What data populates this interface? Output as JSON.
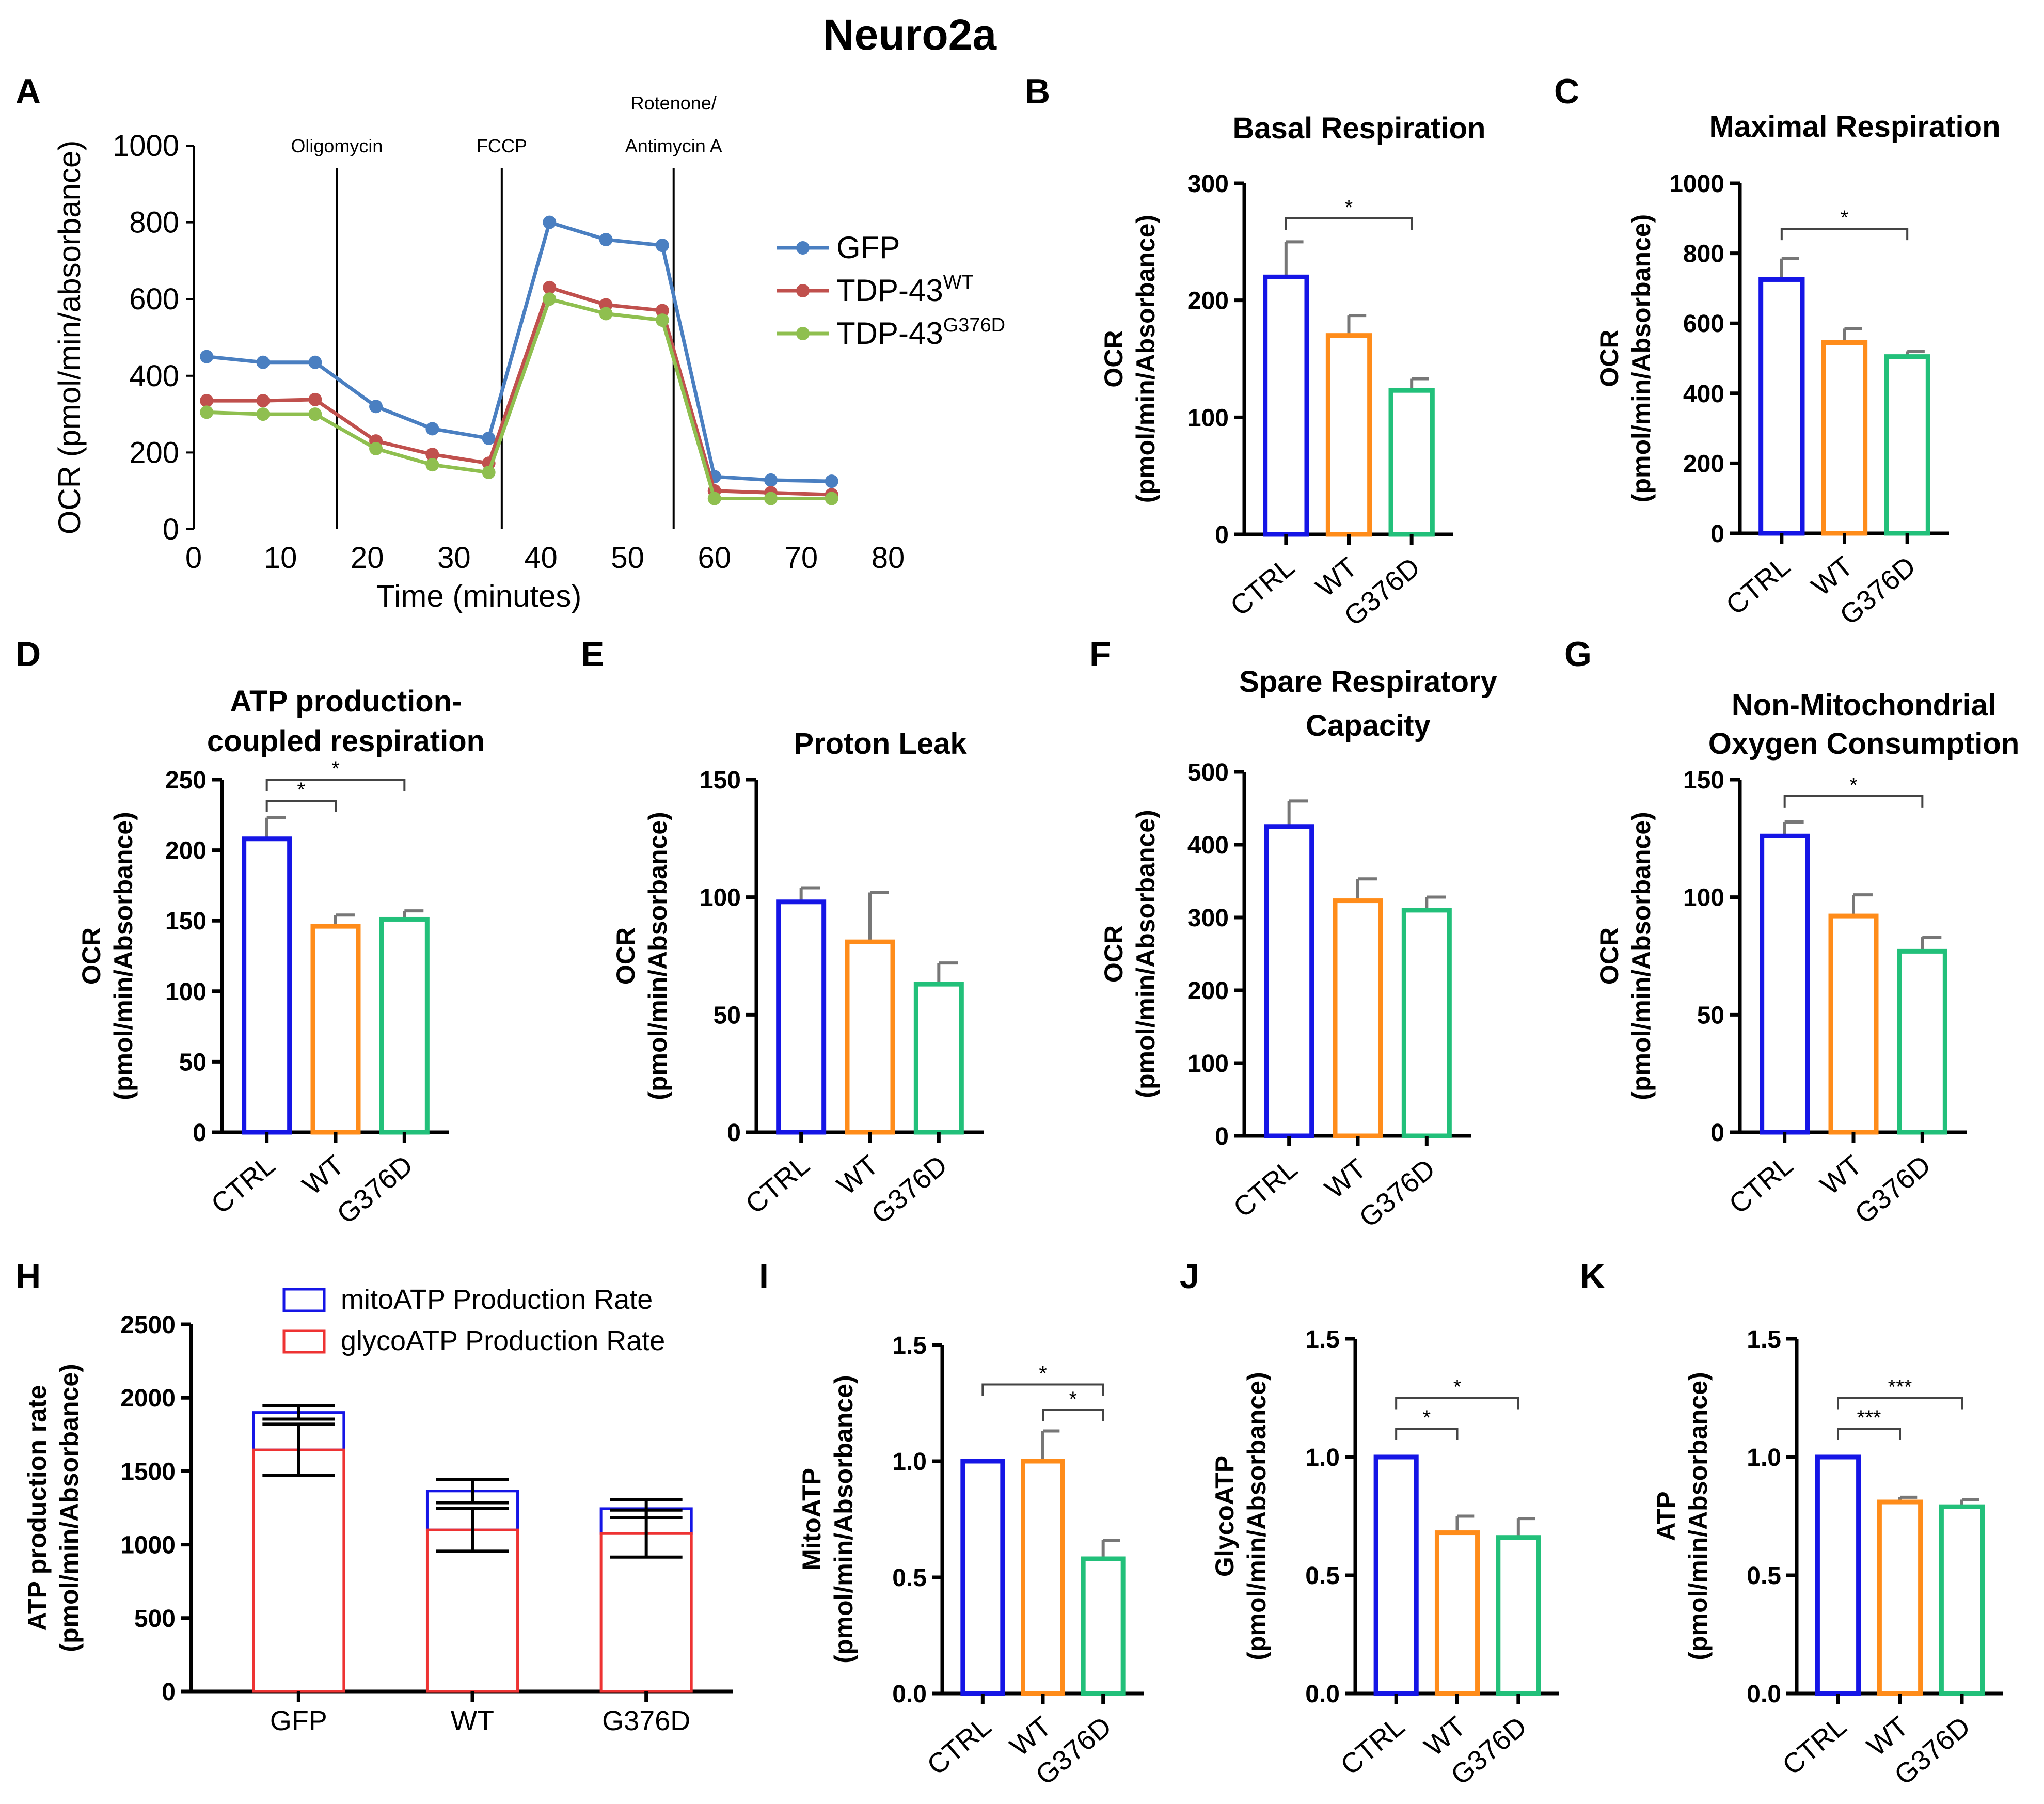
{
  "figure_title": "Neuro2a",
  "colors": {
    "ctrl": "#1515e6",
    "wt": "#ff8c1a",
    "g376d": "#22c07a",
    "gfp_line": "#4a7fc1",
    "wt_line": "#c0504d",
    "g376d_line": "#8fbf4f",
    "mito": "#1515e6",
    "glyco": "#ee3333"
  },
  "chart_data": [
    {
      "id": "A",
      "letter": "A",
      "type": "line",
      "title": "",
      "xlabel": "Time (minutes)",
      "ylabel": "OCR (pmol/min/absorbance)",
      "xlim": [
        0,
        80
      ],
      "ylim": [
        0,
        1000
      ],
      "xticks": [
        0,
        10,
        20,
        30,
        40,
        50,
        60,
        70,
        80
      ],
      "yticks": [
        0,
        200,
        400,
        600,
        800,
        1000
      ],
      "injections": [
        {
          "x": 16.5,
          "label": "Oligomycin"
        },
        {
          "x": 35.5,
          "label": "FCCP"
        },
        {
          "x": 55.3,
          "label": "Antimycin A",
          "label_top": "Rotenone/"
        }
      ],
      "x": [
        1.5,
        8,
        14,
        21,
        27.5,
        34,
        41,
        47.5,
        54,
        60,
        66.5,
        73.5
      ],
      "series": [
        {
          "name": "GFP",
          "sup": "",
          "color_key": "gfp_line",
          "values": [
            450,
            435,
            435,
            320,
            262,
            237,
            800,
            755,
            740,
            137,
            128,
            125
          ]
        },
        {
          "name": "TDP-43",
          "sup": "WT",
          "color_key": "wt_line",
          "values": [
            335,
            335,
            338,
            230,
            195,
            172,
            630,
            585,
            570,
            100,
            95,
            90
          ]
        },
        {
          "name": "TDP-43",
          "sup": "G376D",
          "color_key": "g376d_line",
          "values": [
            305,
            300,
            300,
            210,
            168,
            148,
            600,
            562,
            545,
            80,
            80,
            80
          ]
        }
      ]
    },
    {
      "id": "B",
      "letter": "B",
      "type": "bar",
      "title": [
        "Basal Respiration"
      ],
      "ylabel": [
        "OCR",
        "(pmol/min/Absorbance)"
      ],
      "categories": [
        "CTRL",
        "WT",
        "G376D"
      ],
      "values": [
        220,
        170,
        123
      ],
      "errors": [
        30,
        17,
        10
      ],
      "ylim": [
        0,
        300
      ],
      "yticks": [
        0,
        100,
        200,
        300
      ],
      "decimals": 0,
      "sig": [
        {
          "from": 0,
          "to": 2,
          "label": "*",
          "y": 270
        }
      ]
    },
    {
      "id": "C",
      "letter": "C",
      "type": "bar",
      "title": [
        "Maximal Respiration"
      ],
      "ylabel": [
        "OCR",
        "(pmol/min/Absorbance)"
      ],
      "categories": [
        "CTRL",
        "WT",
        "G376D"
      ],
      "values": [
        725,
        545,
        505
      ],
      "errors": [
        60,
        40,
        15
      ],
      "ylim": [
        0,
        1000
      ],
      "yticks": [
        0,
        200,
        400,
        600,
        800,
        1000
      ],
      "decimals": 0,
      "sig": [
        {
          "from": 0,
          "to": 2,
          "label": "*",
          "y": 870
        }
      ]
    },
    {
      "id": "D",
      "letter": "D",
      "type": "bar",
      "title": [
        "ATP production-",
        "coupled respiration"
      ],
      "ylabel": [
        "OCR",
        "(pmol/min/Absorbance)"
      ],
      "categories": [
        "CTRL",
        "WT",
        "G376D"
      ],
      "values": [
        208,
        146,
        151
      ],
      "errors": [
        15,
        8,
        6
      ],
      "ylim": [
        0,
        250
      ],
      "yticks": [
        0,
        50,
        100,
        150,
        200,
        250
      ],
      "decimals": 0,
      "sig": [
        {
          "from": 0,
          "to": 1,
          "label": "*",
          "y": 235
        },
        {
          "from": 0,
          "to": 2,
          "label": "*",
          "y": 250
        }
      ]
    },
    {
      "id": "E",
      "letter": "E",
      "type": "bar",
      "title": [
        "Proton Leak"
      ],
      "ylabel": [
        "OCR",
        "(pmol/min/Absorbance)"
      ],
      "categories": [
        "CTRL",
        "WT",
        "G376D"
      ],
      "values": [
        98,
        81,
        63
      ],
      "errors": [
        6,
        21,
        9
      ],
      "ylim": [
        0,
        150
      ],
      "yticks": [
        0,
        50,
        100,
        150
      ],
      "decimals": 0,
      "sig": []
    },
    {
      "id": "F",
      "letter": "F",
      "type": "bar",
      "title": [
        "Spare Respiratory",
        "Capacity"
      ],
      "ylabel": [
        "OCR",
        "(pmol/min/Absorbance)"
      ],
      "categories": [
        "CTRL",
        "WT",
        "G376D"
      ],
      "values": [
        425,
        323,
        310
      ],
      "errors": [
        35,
        30,
        18
      ],
      "ylim": [
        0,
        500
      ],
      "yticks": [
        0,
        100,
        200,
        300,
        400,
        500
      ],
      "decimals": 0,
      "sig": []
    },
    {
      "id": "G",
      "letter": "G",
      "type": "bar",
      "title": [
        "Non-Mitochondrial",
        "Oxygen Consumption"
      ],
      "ylabel": [
        "OCR",
        "(pmol/min/Absorbance)"
      ],
      "categories": [
        "CTRL",
        "WT",
        "G376D"
      ],
      "values": [
        126,
        92,
        77
      ],
      "errors": [
        6,
        9,
        6
      ],
      "ylim": [
        0,
        150
      ],
      "yticks": [
        0,
        50,
        100,
        150
      ],
      "decimals": 0,
      "sig": [
        {
          "from": 0,
          "to": 2,
          "label": "*",
          "y": 143
        }
      ]
    },
    {
      "id": "H",
      "letter": "H",
      "type": "stacked-bar",
      "ylabel": [
        "ATP production rate",
        "(pmol/min/Absorbance)"
      ],
      "categories": [
        "GFP",
        "WT",
        "G376D"
      ],
      "series": [
        {
          "name": "glycoATP Production Rate",
          "color_key": "glyco",
          "values": [
            1645,
            1100,
            1075
          ],
          "errors": [
            175,
            145,
            160
          ]
        },
        {
          "name": "mitoATP Production Rate",
          "color_key": "mito",
          "values": [
            255,
            265,
            170
          ],
          "errors": [
            45,
            80,
            60
          ]
        }
      ],
      "ylim": [
        0,
        2500
      ],
      "yticks": [
        0,
        500,
        1000,
        1500,
        2000,
        2500
      ],
      "decimals": 0
    },
    {
      "id": "I",
      "letter": "I",
      "type": "bar",
      "title": [],
      "ylabel": [
        "MitoATP",
        "(pmol/min/Absorbance)"
      ],
      "categories": [
        "CTRL",
        "WT",
        "G376D"
      ],
      "values": [
        1.0,
        1.0,
        0.58
      ],
      "errors": [
        0,
        0.13,
        0.08
      ],
      "ylim": [
        0,
        1.5
      ],
      "yticks": [
        0,
        0.5,
        1.0,
        1.5
      ],
      "decimals": 1,
      "sig": [
        {
          "from": 1,
          "to": 2,
          "label": "*",
          "y": 1.22
        },
        {
          "from": 0,
          "to": 2,
          "label": "*",
          "y": 1.33
        }
      ]
    },
    {
      "id": "J",
      "letter": "J",
      "type": "bar",
      "title": [],
      "ylabel": [
        "GlycoATP",
        "(pmol/min/Absorbance)"
      ],
      "categories": [
        "CTRL",
        "WT",
        "G376D"
      ],
      "values": [
        1.0,
        0.68,
        0.66
      ],
      "errors": [
        0,
        0.07,
        0.08
      ],
      "ylim": [
        0,
        1.5
      ],
      "yticks": [
        0,
        0.5,
        1.0,
        1.5
      ],
      "decimals": 1,
      "sig": [
        {
          "from": 0,
          "to": 1,
          "label": "*",
          "y": 1.12
        },
        {
          "from": 0,
          "to": 2,
          "label": "*",
          "y": 1.25
        }
      ]
    },
    {
      "id": "K",
      "letter": "K",
      "type": "bar",
      "title": [],
      "ylabel": [
        "ATP",
        "(pmol/min/Absorbance)"
      ],
      "categories": [
        "CTRL",
        "WT",
        "G376D"
      ],
      "values": [
        1.0,
        0.81,
        0.79
      ],
      "errors": [
        0,
        0.02,
        0.03
      ],
      "ylim": [
        0,
        1.5
      ],
      "yticks": [
        0,
        0.5,
        1.0,
        1.5
      ],
      "decimals": 1,
      "sig": [
        {
          "from": 0,
          "to": 1,
          "label": "***",
          "y": 1.12
        },
        {
          "from": 0,
          "to": 2,
          "label": "***",
          "y": 1.25
        }
      ]
    }
  ]
}
